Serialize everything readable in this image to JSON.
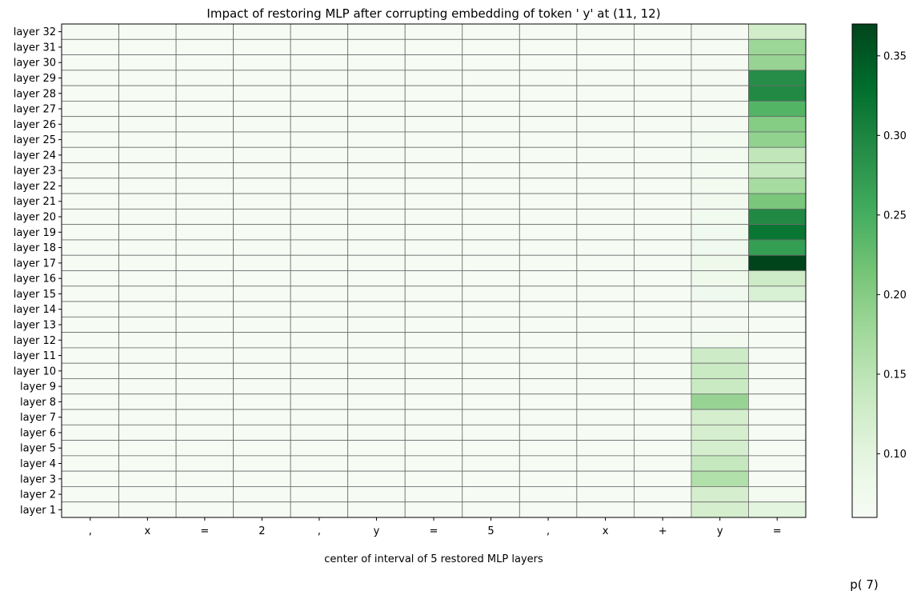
{
  "chart_data": {
    "type": "heatmap",
    "title": "Impact of restoring MLP after corrupting embedding of token ' y' at (11, 12)",
    "xlabel": "center of interval of 5 restored MLP layers",
    "ylabel": "",
    "x_tick_labels": [
      ",",
      "x",
      "=",
      "2",
      ",",
      "y",
      "=",
      "5",
      ",",
      "x",
      "+",
      "y",
      "="
    ],
    "y_tick_labels": [
      "layer 32",
      "layer 31",
      "layer 30",
      "layer 29",
      "layer 28",
      "layer 27",
      "layer 26",
      "layer 25",
      "layer 24",
      "layer 23",
      "layer 22",
      "layer 21",
      "layer 20",
      "layer 19",
      "layer 18",
      "layer 17",
      "layer 16",
      "layer 15",
      "layer 14",
      "layer 13",
      "layer 12",
      "layer 11",
      "layer 10",
      "layer 9",
      "layer 8",
      "layer 7",
      "layer 6",
      "layer 5",
      "layer 4",
      "layer 3",
      "layer 2",
      "layer 1"
    ],
    "colorbar": {
      "label": "p( 7)",
      "range": [
        0.06,
        0.37
      ],
      "ticks": [
        0.1,
        0.15,
        0.2,
        0.25,
        0.3,
        0.35
      ],
      "tick_labels": [
        "0.10",
        "0.15",
        "0.20",
        "0.25",
        "0.30",
        "0.35"
      ],
      "colormap": "Greens"
    },
    "values": [
      [
        0.062,
        0.062,
        0.062,
        0.062,
        0.062,
        0.062,
        0.062,
        0.062,
        0.062,
        0.062,
        0.062,
        0.065,
        0.125
      ],
      [
        0.062,
        0.062,
        0.062,
        0.062,
        0.062,
        0.062,
        0.062,
        0.062,
        0.062,
        0.062,
        0.062,
        0.065,
        0.18
      ],
      [
        0.062,
        0.062,
        0.062,
        0.062,
        0.062,
        0.062,
        0.062,
        0.062,
        0.062,
        0.062,
        0.062,
        0.065,
        0.185
      ],
      [
        0.062,
        0.062,
        0.062,
        0.062,
        0.062,
        0.062,
        0.062,
        0.062,
        0.062,
        0.062,
        0.062,
        0.065,
        0.29
      ],
      [
        0.062,
        0.062,
        0.062,
        0.062,
        0.062,
        0.062,
        0.062,
        0.062,
        0.062,
        0.062,
        0.062,
        0.065,
        0.295
      ],
      [
        0.062,
        0.062,
        0.062,
        0.062,
        0.062,
        0.062,
        0.062,
        0.062,
        0.062,
        0.062,
        0.062,
        0.065,
        0.24
      ],
      [
        0.062,
        0.062,
        0.062,
        0.062,
        0.062,
        0.062,
        0.062,
        0.062,
        0.062,
        0.062,
        0.062,
        0.065,
        0.2
      ],
      [
        0.062,
        0.062,
        0.062,
        0.062,
        0.062,
        0.062,
        0.062,
        0.062,
        0.062,
        0.062,
        0.062,
        0.068,
        0.19
      ],
      [
        0.062,
        0.062,
        0.062,
        0.062,
        0.062,
        0.062,
        0.062,
        0.062,
        0.062,
        0.062,
        0.062,
        0.068,
        0.145
      ],
      [
        0.062,
        0.062,
        0.062,
        0.062,
        0.062,
        0.062,
        0.062,
        0.062,
        0.062,
        0.062,
        0.062,
        0.068,
        0.14
      ],
      [
        0.062,
        0.062,
        0.062,
        0.062,
        0.062,
        0.062,
        0.062,
        0.062,
        0.062,
        0.062,
        0.062,
        0.068,
        0.17
      ],
      [
        0.062,
        0.062,
        0.062,
        0.062,
        0.062,
        0.062,
        0.062,
        0.062,
        0.062,
        0.062,
        0.062,
        0.07,
        0.21
      ],
      [
        0.062,
        0.062,
        0.062,
        0.062,
        0.062,
        0.062,
        0.062,
        0.062,
        0.062,
        0.062,
        0.062,
        0.072,
        0.295
      ],
      [
        0.062,
        0.062,
        0.062,
        0.062,
        0.062,
        0.062,
        0.062,
        0.062,
        0.062,
        0.062,
        0.062,
        0.072,
        0.32
      ],
      [
        0.062,
        0.062,
        0.062,
        0.062,
        0.062,
        0.062,
        0.062,
        0.062,
        0.062,
        0.062,
        0.062,
        0.074,
        0.27
      ],
      [
        0.062,
        0.062,
        0.062,
        0.062,
        0.062,
        0.062,
        0.062,
        0.062,
        0.062,
        0.062,
        0.062,
        0.078,
        0.37
      ],
      [
        0.062,
        0.062,
        0.062,
        0.062,
        0.062,
        0.062,
        0.062,
        0.062,
        0.062,
        0.062,
        0.062,
        0.078,
        0.13
      ],
      [
        0.062,
        0.062,
        0.062,
        0.062,
        0.062,
        0.062,
        0.062,
        0.062,
        0.062,
        0.062,
        0.062,
        0.075,
        0.115
      ],
      [
        0.062,
        0.062,
        0.062,
        0.062,
        0.062,
        0.062,
        0.062,
        0.062,
        0.062,
        0.062,
        0.062,
        0.065,
        0.062
      ],
      [
        0.062,
        0.062,
        0.062,
        0.062,
        0.062,
        0.062,
        0.062,
        0.062,
        0.062,
        0.062,
        0.062,
        0.065,
        0.062
      ],
      [
        0.062,
        0.062,
        0.062,
        0.062,
        0.062,
        0.062,
        0.062,
        0.062,
        0.062,
        0.062,
        0.062,
        0.07,
        0.062
      ],
      [
        0.062,
        0.062,
        0.062,
        0.062,
        0.062,
        0.062,
        0.062,
        0.062,
        0.062,
        0.062,
        0.062,
        0.13,
        0.062
      ],
      [
        0.062,
        0.062,
        0.062,
        0.062,
        0.062,
        0.062,
        0.062,
        0.062,
        0.062,
        0.062,
        0.062,
        0.135,
        0.062
      ],
      [
        0.062,
        0.062,
        0.062,
        0.062,
        0.062,
        0.062,
        0.062,
        0.062,
        0.062,
        0.062,
        0.062,
        0.135,
        0.062
      ],
      [
        0.062,
        0.062,
        0.062,
        0.062,
        0.062,
        0.062,
        0.062,
        0.062,
        0.062,
        0.062,
        0.062,
        0.185,
        0.062
      ],
      [
        0.062,
        0.062,
        0.062,
        0.062,
        0.062,
        0.062,
        0.062,
        0.062,
        0.062,
        0.062,
        0.062,
        0.12,
        0.062
      ],
      [
        0.062,
        0.062,
        0.062,
        0.062,
        0.062,
        0.062,
        0.062,
        0.062,
        0.062,
        0.062,
        0.062,
        0.12,
        0.062
      ],
      [
        0.062,
        0.062,
        0.062,
        0.062,
        0.062,
        0.062,
        0.062,
        0.062,
        0.062,
        0.062,
        0.062,
        0.12,
        0.062
      ],
      [
        0.062,
        0.062,
        0.062,
        0.062,
        0.062,
        0.062,
        0.062,
        0.062,
        0.062,
        0.062,
        0.062,
        0.14,
        0.062
      ],
      [
        0.062,
        0.062,
        0.062,
        0.062,
        0.062,
        0.062,
        0.062,
        0.062,
        0.062,
        0.062,
        0.062,
        0.16,
        0.062
      ],
      [
        0.062,
        0.062,
        0.062,
        0.062,
        0.062,
        0.062,
        0.062,
        0.062,
        0.062,
        0.062,
        0.062,
        0.12,
        0.068
      ],
      [
        0.062,
        0.062,
        0.062,
        0.062,
        0.062,
        0.062,
        0.062,
        0.062,
        0.062,
        0.062,
        0.062,
        0.12,
        0.1
      ]
    ]
  }
}
